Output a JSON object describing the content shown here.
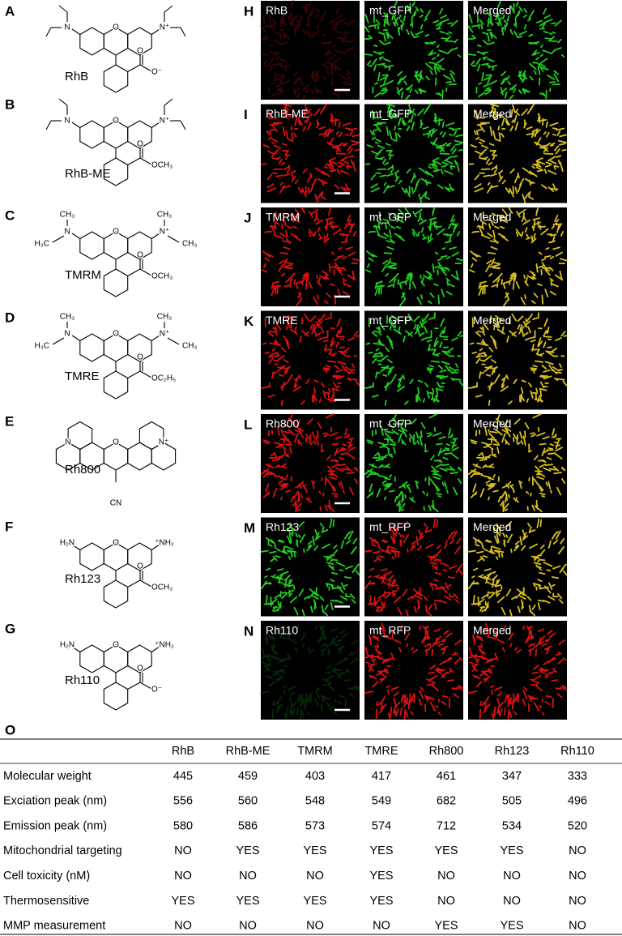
{
  "structures": [
    {
      "letter": "A",
      "name": "RhB",
      "atoms": [
        "O",
        "N",
        "N⁺",
        "O",
        "O⁻"
      ]
    },
    {
      "letter": "B",
      "name": "RhB-ME",
      "atoms": [
        "O",
        "N",
        "N⁺",
        "O",
        "OCH₃"
      ]
    },
    {
      "letter": "C",
      "name": "TMRM",
      "atoms": [
        "O",
        "N",
        "N⁺",
        "O",
        "OCH₃",
        "H₃C",
        "CH₃",
        "CH₃",
        "CH₃"
      ]
    },
    {
      "letter": "D",
      "name": "TMRE",
      "atoms": [
        "O",
        "N",
        "N⁺",
        "O",
        "OC₂H₅",
        "H₃C",
        "CH₃",
        "CH₃",
        "CH₃"
      ]
    },
    {
      "letter": "E",
      "name": "Rh800",
      "atoms": [
        "O",
        "N",
        "N⁺",
        "CN"
      ]
    },
    {
      "letter": "F",
      "name": "Rh123",
      "atoms": [
        "O",
        "H₂N",
        "⁺NH₂",
        "O",
        "OCH₃"
      ]
    },
    {
      "letter": "G",
      "name": "Rh110",
      "atoms": [
        "O",
        "H₂N",
        "⁺NH₂",
        "O",
        "O⁻"
      ]
    }
  ],
  "images": [
    {
      "letter": "H",
      "labels": [
        "RhB",
        "mt_GFP",
        "Merged"
      ]
    },
    {
      "letter": "I",
      "labels": [
        "RhB-ME",
        "mt_GFP",
        "Merged"
      ]
    },
    {
      "letter": "J",
      "labels": [
        "TMRM",
        "mt_GFP",
        "Merged"
      ]
    },
    {
      "letter": "K",
      "labels": [
        "TMRE",
        "mt_GFP",
        "Merged"
      ]
    },
    {
      "letter": "L",
      "labels": [
        "Rh800",
        "mt_GFP",
        "Merged"
      ]
    },
    {
      "letter": "M",
      "labels": [
        "Rh123",
        "mt_RFP",
        "Merged"
      ]
    },
    {
      "letter": "N",
      "labels": [
        "Rh110",
        "mt_RFP",
        "Merged"
      ]
    }
  ],
  "table": {
    "letter": "O",
    "header": [
      "RhB",
      "RhB-ME",
      "TMRM",
      "TMRE",
      "Rh800",
      "Rh123",
      "Rh110"
    ],
    "rows": [
      [
        "Molecular weight",
        "445",
        "459",
        "403",
        "417",
        "461",
        "347",
        "333"
      ],
      [
        "Exciation peak (nm)",
        "556",
        "560",
        "548",
        "549",
        "682",
        "505",
        "496"
      ],
      [
        "Emission peak (nm)",
        "580",
        "586",
        "573",
        "574",
        "712",
        "534",
        "520"
      ],
      [
        "Mitochondrial targeting",
        "NO",
        "YES",
        "YES",
        "YES",
        "YES",
        "YES",
        "NO"
      ],
      [
        "Cell toxicity (nM)",
        "NO",
        "NO",
        "NO",
        "YES",
        "NO",
        "NO",
        "NO"
      ],
      [
        "Thermosensitive",
        "YES",
        "YES",
        "YES",
        "YES",
        "NO",
        "NO",
        "NO"
      ],
      [
        "MMP measurement",
        "NO",
        "NO",
        "NO",
        "NO",
        "YES",
        "YES",
        "NO"
      ]
    ]
  }
}
